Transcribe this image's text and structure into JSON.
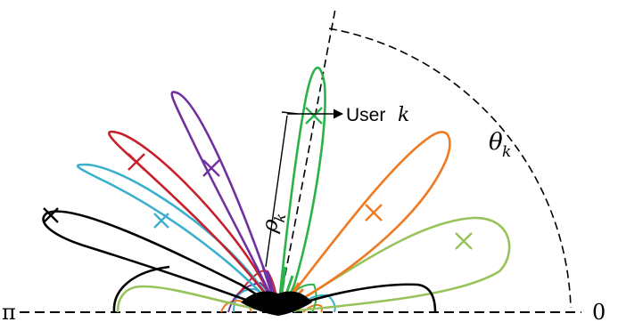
{
  "labels": {
    "pi": "π",
    "zero": "0",
    "theta_k": "θ",
    "theta_sub": "k",
    "rho_k": "ρ",
    "rho_sub": "k",
    "user_prefix": "User ",
    "user_k": "k"
  },
  "colors": {
    "purple": "#7030a0",
    "green": "#2db24a",
    "red": "#c8202b",
    "blue": "#3ab0cc",
    "orange": "#f07a22",
    "lightgreen": "#96c45a",
    "black": "#000000"
  },
  "lobes": [
    {
      "name": "black-lobe",
      "color": "#000000"
    },
    {
      "name": "blue-lobe",
      "color": "#3ab0cc"
    },
    {
      "name": "red-lobe",
      "color": "#c8202b"
    },
    {
      "name": "purple-lobe",
      "color": "#7030a0"
    },
    {
      "name": "green-lobe",
      "color": "#2db24a"
    },
    {
      "name": "orange-lobe",
      "color": "#f07a22"
    },
    {
      "name": "lightgreen-lobe",
      "color": "#96c45a"
    }
  ]
}
